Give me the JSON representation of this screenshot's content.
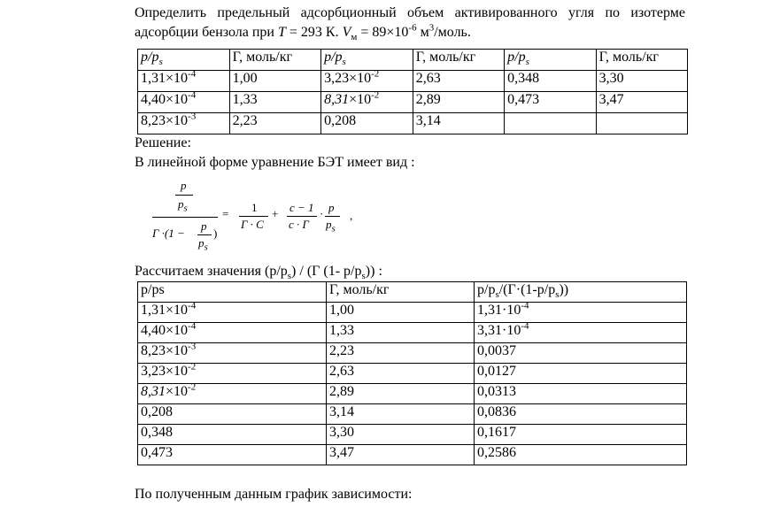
{
  "task": [
    {
      "t": "Определить предельный адсорбционный объем активированного угля по изотерме адсорбции бензола при "
    },
    {
      "t": "T",
      "s": "i"
    },
    {
      "t": " = 293 К. "
    },
    {
      "t": "V",
      "s": "i"
    },
    {
      "t": "м",
      "s": "sub"
    },
    {
      "t": " = 89×10"
    },
    {
      "t": "-6",
      "s": "sup"
    },
    {
      "t": " м"
    },
    {
      "t": "3",
      "s": "sup"
    },
    {
      "t": "/моль."
    }
  ],
  "table1": {
    "header": [
      [
        {
          "t": "p/p",
          "s": "i"
        },
        {
          "t": "s",
          "s": "isub"
        }
      ],
      "Г, моль/кг",
      [
        {
          "t": "p/p",
          "s": "i"
        },
        {
          "t": "s",
          "s": "isub"
        }
      ],
      "Г, моль/кг",
      [
        {
          "t": "p/p",
          "s": "i"
        },
        {
          "t": "s",
          "s": "isub"
        }
      ],
      "Г, моль/кг"
    ],
    "rows": [
      [
        [
          {
            "t": "1,31×10"
          },
          {
            "t": "-4",
            "s": "sup"
          }
        ],
        "1,00",
        [
          {
            "t": "3,23×10"
          },
          {
            "t": "-2",
            "s": "sup"
          }
        ],
        "2,63",
        "0,348",
        "3,30"
      ],
      [
        [
          {
            "t": "4,40×10"
          },
          {
            "t": "-4",
            "s": "sup"
          }
        ],
        "1,33",
        [
          {
            "t": "8,31",
            "s": "i"
          },
          {
            "t": "×10"
          },
          {
            "t": "-2",
            "s": "sup"
          }
        ],
        "2,89",
        "0,473",
        "3,47"
      ],
      [
        [
          {
            "t": "8,23×10"
          },
          {
            "t": "-3",
            "s": "sup"
          }
        ],
        "2,23",
        "0,208",
        "3,14"
      ]
    ]
  },
  "solution_label": "Решение:",
  "intro": "В линейной форме уравнение БЭТ имеет вид :",
  "formula": {
    "a_num": "p",
    "a_den": [
      {
        "t": "p",
        "s": "i"
      },
      {
        "t": "s",
        "s": "isub"
      }
    ],
    "b_left": "Γ ·(1 −",
    "b_num": "p",
    "b_den": [
      {
        "t": "p",
        "s": "i"
      },
      {
        "t": "s",
        "s": "isub"
      }
    ],
    "b_right": ")",
    "eq": "=",
    "c_num": "1",
    "c_den": "Γ · C",
    "plus": "+",
    "d_num": "c − 1",
    "d_den": "c · Γ",
    "dot": "·",
    "e_num": "p",
    "e_den": [
      {
        "t": "p",
        "s": "i"
      },
      {
        "t": "s",
        "s": "isub"
      }
    ],
    "comma": ","
  },
  "calc_text": [
    {
      "t": "Рассчитаем значения  (p/p"
    },
    {
      "t": "s",
      "s": "sub"
    },
    {
      "t": ") / (Г (1- p/p"
    },
    {
      "t": "s",
      "s": "sub"
    },
    {
      "t": ")) :"
    }
  ],
  "table2": {
    "header": [
      "p/ps",
      "Г, моль/кг",
      [
        {
          "t": "p/p"
        },
        {
          "t": "s",
          "s": "sub"
        },
        {
          "t": "/(Г·(1-p/p"
        },
        {
          "t": "s",
          "s": "sub"
        },
        {
          "t": "))"
        }
      ]
    ],
    "rows": [
      [
        [
          {
            "t": "1,31×10"
          },
          {
            "t": "-4",
            "s": "sup"
          }
        ],
        "1,00",
        [
          {
            "t": "1,31·10"
          },
          {
            "t": "-4",
            "s": "sup"
          }
        ]
      ],
      [
        [
          {
            "t": "4,40×10"
          },
          {
            "t": "-4",
            "s": "sup"
          }
        ],
        "1,33",
        [
          {
            "t": "3,31·10"
          },
          {
            "t": "-4",
            "s": "sup"
          }
        ]
      ],
      [
        [
          {
            "t": "8,23×10"
          },
          {
            "t": "-3",
            "s": "sup"
          }
        ],
        "2,23",
        "0,0037"
      ],
      [
        [
          {
            "t": "3,23×10"
          },
          {
            "t": "-2",
            "s": "sup"
          }
        ],
        "2,63",
        "0,0127"
      ],
      [
        [
          {
            "t": "8,31",
            "s": "i"
          },
          {
            "t": "×10"
          },
          {
            "t": "-2",
            "s": "sup"
          }
        ],
        "2,89",
        "0,0313"
      ],
      [
        "0,208",
        "3,14",
        "0,0836"
      ],
      [
        "0,348",
        "3,30",
        "0,1617"
      ],
      [
        "0,473",
        "3,47",
        "0,2586"
      ]
    ]
  },
  "conclusion": "По полученным данным график зависимости:"
}
